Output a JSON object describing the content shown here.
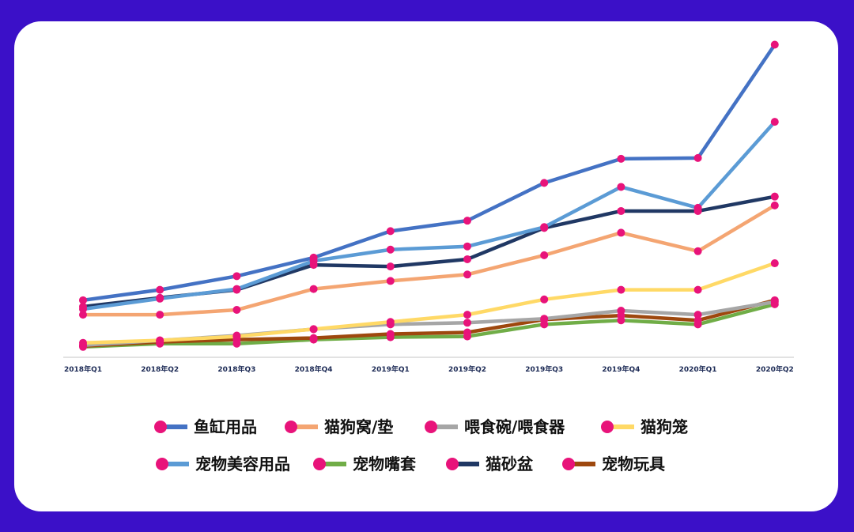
{
  "chart_data": {
    "type": "line",
    "title": "",
    "xlabel": "",
    "ylabel": "",
    "y_axis_labels_shown": false,
    "grid": false,
    "legend_position": "bottom",
    "marker_color": "#e8137a",
    "categories": [
      "2018年Q1",
      "2018年Q2",
      "2018年Q3",
      "2018年Q4",
      "2019年Q1",
      "2019年Q2",
      "2019年Q3",
      "2019年Q4",
      "2020年Q1",
      "2020年Q2"
    ],
    "series": [
      {
        "name": "鱼缸用品",
        "color": "#4472c4",
        "values": [
          71,
          84,
          101,
          124,
          157,
          170,
          217,
          247,
          248,
          389
        ]
      },
      {
        "name": "宠物美容用品",
        "color": "#5b9bd5",
        "values": [
          60,
          73,
          85,
          120,
          134,
          138,
          162,
          212,
          186,
          293
        ]
      },
      {
        "name": "猫砂盆",
        "color": "#203864",
        "values": [
          63,
          74,
          84,
          115,
          113,
          122,
          161,
          182,
          182,
          200
        ]
      },
      {
        "name": "猫狗窝/垫",
        "color": "#f4a572",
        "values": [
          53,
          53,
          59,
          85,
          95,
          103,
          127,
          155,
          132,
          189
        ]
      },
      {
        "name": "猫狗笼",
        "color": "#ffd966",
        "values": [
          18,
          21,
          26,
          35,
          44,
          53,
          72,
          84,
          84,
          117
        ]
      },
      {
        "name": "喂食碗/喂食器",
        "color": "#a6a6a6",
        "values": [
          15,
          21,
          27,
          35,
          41,
          43,
          48,
          58,
          53,
          69
        ]
      },
      {
        "name": "宠物玩具",
        "color": "#9e480e",
        "values": [
          14,
          19,
          22,
          24,
          29,
          31,
          47,
          52,
          46,
          71
        ]
      },
      {
        "name": "宠物嘴套",
        "color": "#70ad47",
        "values": [
          13,
          17,
          17,
          22,
          25,
          26,
          41,
          46,
          41,
          66
        ]
      }
    ],
    "ylim": [
      0,
      420
    ]
  },
  "legend": [
    {
      "label": "鱼缸用品",
      "color": "#4472c4"
    },
    {
      "label": "猫狗窝/垫",
      "color": "#f4a572"
    },
    {
      "label": "喂食碗/喂食器",
      "color": "#a6a6a6"
    },
    {
      "label": "猫狗笼",
      "color": "#ffd966"
    },
    {
      "label": "宠物美容用品",
      "color": "#5b9bd5"
    },
    {
      "label": "宠物嘴套",
      "color": "#70ad47"
    },
    {
      "label": "猫砂盆",
      "color": "#203864"
    },
    {
      "label": "宠物玩具",
      "color": "#9e480e"
    }
  ]
}
